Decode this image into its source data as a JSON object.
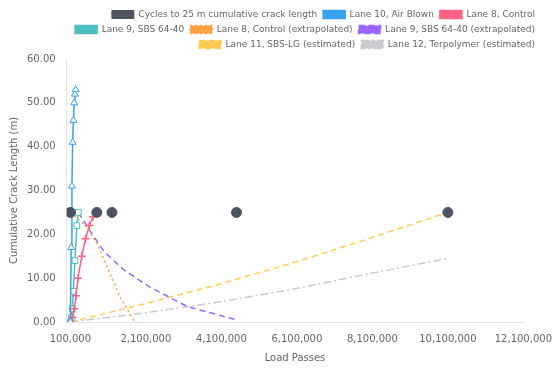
{
  "chart_data": {
    "type": "line",
    "xlabel": "Load Passes",
    "ylabel": "Cumulative Crack Length (m)",
    "xlim": [
      0,
      12100000
    ],
    "ylim": [
      0,
      60
    ],
    "xticks": [
      {
        "value": 100000,
        "label": "100,000"
      },
      {
        "value": 2100000,
        "label": "2,100,000"
      },
      {
        "value": 4100000,
        "label": "4,100,000"
      },
      {
        "value": 6100000,
        "label": "6,100,000"
      },
      {
        "value": 8100000,
        "label": "8,100,000"
      },
      {
        "value": 10100000,
        "label": "10,100,000"
      },
      {
        "value": 12100000,
        "label": "12,100,000"
      }
    ],
    "yticks": [
      {
        "value": 0,
        "label": "0.00"
      },
      {
        "value": 10,
        "label": "10.00"
      },
      {
        "value": 20,
        "label": "20.00"
      },
      {
        "value": 30,
        "label": "30.00"
      },
      {
        "value": 40,
        "label": "40.00"
      },
      {
        "value": 50,
        "label": "50.00"
      },
      {
        "value": 60,
        "label": "60.00"
      }
    ],
    "grid": false,
    "legend": "upper right",
    "series": [
      {
        "name": "Lane 10, Air Blown",
        "marker": "triangle",
        "line_style": "solid",
        "x": [
          100000,
          120000,
          140000,
          160000,
          180000,
          200000,
          220000,
          240000
        ],
        "values": [
          0.0,
          17.0,
          31.0,
          41.0,
          46.0,
          50.0,
          52.0,
          53.0
        ]
      },
      {
        "name": "Lane 8, Control",
        "marker": "plus",
        "line_style": "solid",
        "x": [
          100000,
          150000,
          200000,
          250000,
          300000,
          400000,
          500000,
          600000,
          700000,
          800000
        ],
        "values": [
          0.0,
          1.0,
          3.0,
          6.0,
          10.0,
          15.0,
          19.0,
          22.0,
          24.0,
          25.0
        ]
      },
      {
        "name": "Lane 9, SBS 64-40",
        "marker": "square",
        "line_style": "solid",
        "x": [
          100000,
          120000,
          150000,
          180000,
          220000,
          270000,
          310000
        ],
        "values": [
          0.0,
          1.0,
          3.0,
          7.0,
          14.0,
          22.0,
          25.0
        ]
      },
      {
        "name": "Lane 8, Control (extrapolated)",
        "marker": "none",
        "line_style": "dotted",
        "x": [
          100000,
          500000,
          800000,
          1100000,
          1400000,
          1800000
        ],
        "values": [
          25.0,
          22.0,
          18.0,
          12.0,
          6.0,
          0.0
        ]
      },
      {
        "name": "Lane 9, SBS 64-40 (extrapolated)",
        "marker": "none",
        "line_style": "dashed",
        "x": [
          310000,
          600000,
          1000000,
          1500000,
          2200000,
          3200000,
          4500000
        ],
        "values": [
          25.0,
          21.0,
          16.0,
          12.0,
          8.0,
          3.5,
          0.5
        ]
      },
      {
        "name": "Lane 11, SBS-LG (estimated)",
        "marker": "none",
        "line_style": "dashed",
        "x": [
          100000,
          2000000,
          4000000,
          6000000,
          8000000,
          10100000
        ],
        "values": [
          0.0,
          4.0,
          8.5,
          13.5,
          19.0,
          25.0
        ]
      },
      {
        "name": "Lane 12, Terpolymer (estimated)",
        "marker": "none",
        "line_style": "dashdot",
        "x": [
          100000,
          2000000,
          4000000,
          6000000,
          8000000,
          10100000
        ],
        "values": [
          0.0,
          2.0,
          4.5,
          7.5,
          11.0,
          14.5
        ]
      },
      {
        "name": "Cycles to 25 m cumulative crack length",
        "type": "scatter",
        "marker": "circle",
        "x": [
          100000,
          800000,
          1200000,
          4500000,
          10100000
        ],
        "values": [
          25.0,
          25.0,
          25.0,
          25.0,
          25.0
        ]
      }
    ]
  }
}
